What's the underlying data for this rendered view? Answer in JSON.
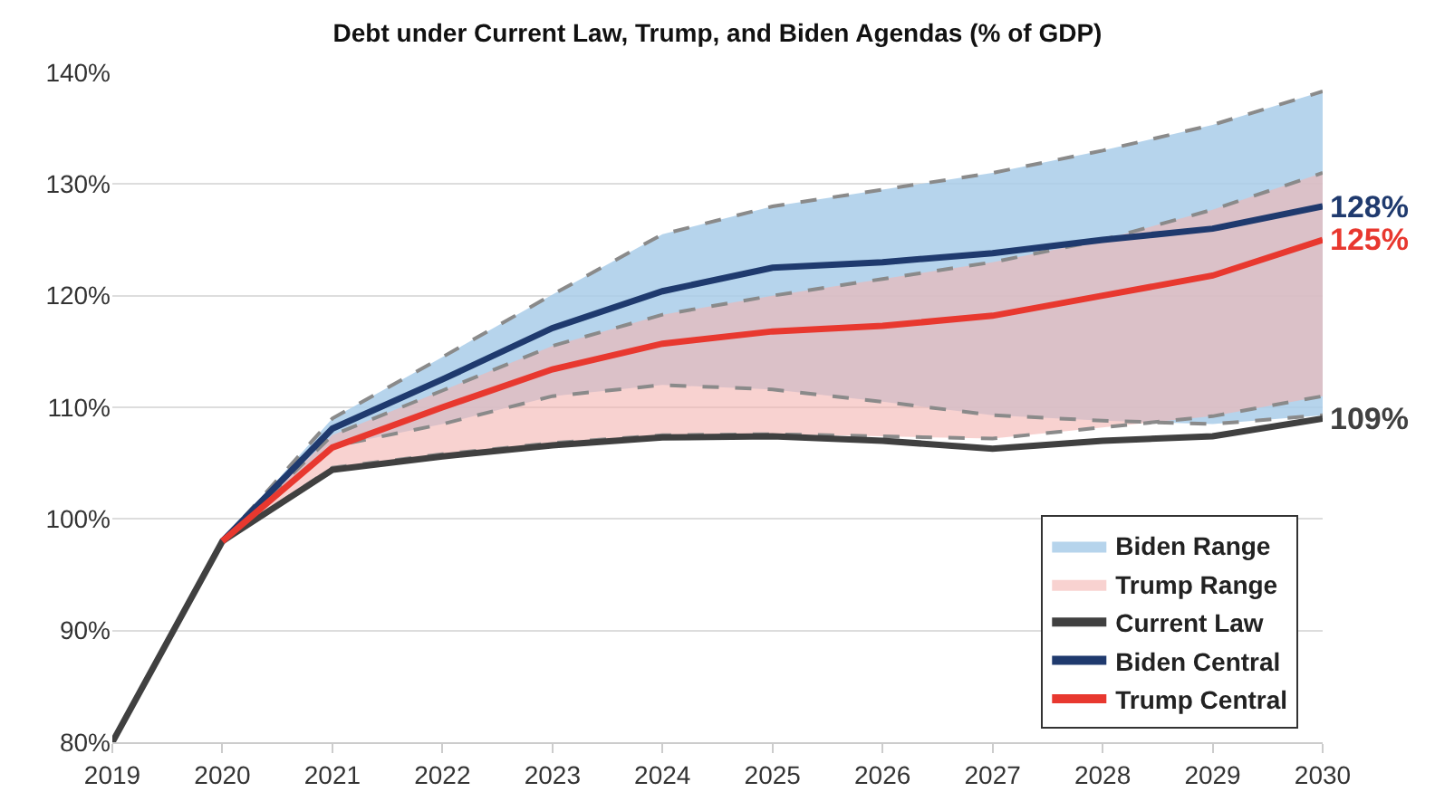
{
  "chart_data": {
    "type": "line",
    "title": "Debt under Current Law, Trump, and Biden Agendas (% of GDP)",
    "x": [
      2019,
      2020,
      2021,
      2022,
      2023,
      2024,
      2025,
      2026,
      2027,
      2028,
      2029,
      2030
    ],
    "series": [
      {
        "name": "Biden Range",
        "type": "area",
        "color": "#a9cde9",
        "x": [
          2020,
          2021,
          2022,
          2023,
          2024,
          2025,
          2026,
          2027,
          2028,
          2029,
          2030
        ],
        "values": [
          null,
          null,
          null,
          null,
          null,
          null,
          null,
          null,
          null,
          null,
          null
        ],
        "lower": [
          98,
          106.5,
          108.5,
          111,
          112,
          111.6,
          110.5,
          109.3,
          108.8,
          108.5,
          109.3
        ],
        "upper": [
          98,
          109,
          114.5,
          120.1,
          125.5,
          128,
          129.5,
          131,
          133,
          135.3,
          138.3
        ],
        "line_style": "dashed"
      },
      {
        "name": "Trump Range",
        "type": "area",
        "color": "#f4b4b0",
        "x": [
          2020,
          2021,
          2022,
          2023,
          2024,
          2025,
          2026,
          2027,
          2028,
          2029,
          2030
        ],
        "values": [
          null,
          null,
          null,
          null,
          null,
          null,
          null,
          null,
          null,
          null,
          null
        ],
        "lower": [
          98,
          104.6,
          105.8,
          106.8,
          107.5,
          107.6,
          107.4,
          107.2,
          108.2,
          109.2,
          111
        ],
        "upper": [
          98,
          107.5,
          111.5,
          115.5,
          118.3,
          120,
          121.5,
          123,
          125,
          127.7,
          131
        ],
        "line_style": "dashed"
      },
      {
        "type": "line",
        "color": "#8a8a8a",
        "line_style": "dashed",
        "x": [
          2020,
          2021,
          2022,
          2023,
          2024,
          2025,
          2026,
          2027,
          2028,
          2029,
          2030
        ],
        "values": [
          98,
          106.5,
          108.5,
          111,
          112,
          111.6,
          110.5,
          109.3,
          108.8,
          108.5,
          109.3
        ]
      },
      {
        "type": "line",
        "color": "#8a8a8a",
        "line_style": "dashed",
        "x": [
          2020,
          2021,
          2022,
          2023,
          2024,
          2025,
          2026,
          2027,
          2028,
          2029,
          2030
        ],
        "values": [
          98,
          109,
          114.5,
          120.1,
          125.5,
          128,
          129.5,
          131,
          133,
          135.3,
          138.3
        ]
      },
      {
        "type": "line",
        "color": "#8a8a8a",
        "line_style": "dashed",
        "x": [
          2020,
          2021,
          2022,
          2023,
          2024,
          2025,
          2026,
          2027,
          2028,
          2029,
          2030
        ],
        "values": [
          98,
          104.6,
          105.8,
          106.8,
          107.5,
          107.6,
          107.4,
          107.2,
          108.2,
          109.2,
          111
        ]
      },
      {
        "type": "line",
        "color": "#8a8a8a",
        "line_style": "dashed",
        "x": [
          2020,
          2021,
          2022,
          2023,
          2024,
          2025,
          2026,
          2027,
          2028,
          2029,
          2030
        ],
        "values": [
          98,
          107.5,
          111.5,
          115.5,
          118.3,
          120,
          121.5,
          123,
          125,
          127.7,
          131
        ]
      },
      {
        "name": "Current Law",
        "color": "#404040",
        "values": [
          80,
          98,
          104.4,
          105.6,
          106.6,
          107.3,
          107.4,
          107,
          106.3,
          107,
          107.4,
          109
        ]
      },
      {
        "name": "Biden Central",
        "color": "#1f3a6e",
        "values": [
          null,
          98,
          108.1,
          112.5,
          117.1,
          120.4,
          122.5,
          123,
          123.8,
          125,
          126,
          128
        ]
      },
      {
        "name": "Trump Central",
        "color": "#e8382f",
        "values": [
          null,
          98,
          106.4,
          110,
          113.4,
          115.7,
          116.8,
          117.3,
          118.2,
          120,
          121.8,
          125
        ]
      }
    ],
    "annotations": [
      "128%",
      "125%",
      "109%"
    ],
    "xlim": [
      2019,
      2030
    ],
    "xticks": [
      2019,
      2020,
      2021,
      2022,
      2023,
      2024,
      2025,
      2026,
      2027,
      2028,
      2029,
      2030
    ],
    "ylim": [
      80,
      140
    ],
    "yticks": [
      {
        "value": 80,
        "label": "80%"
      },
      {
        "value": 90,
        "label": "90%"
      },
      {
        "value": 100,
        "label": "100%"
      },
      {
        "value": 110,
        "label": "110%"
      },
      {
        "value": 120,
        "label": "120%"
      },
      {
        "value": 130,
        "label": "130%"
      },
      {
        "value": 140,
        "label": "140%"
      }
    ],
    "grid": "y",
    "legend": "bottom right",
    "marker": "none",
    "line_style": "solid"
  }
}
